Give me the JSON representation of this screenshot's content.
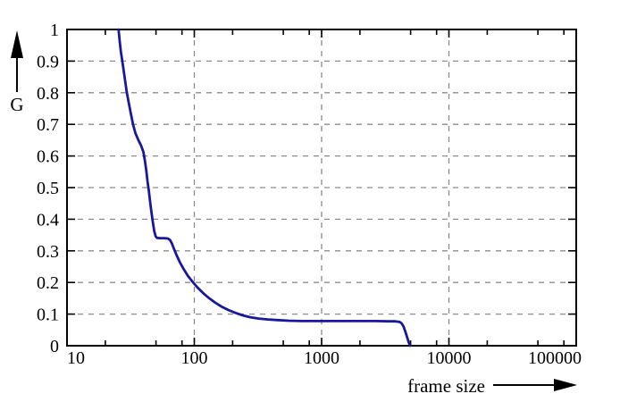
{
  "figure": {
    "background": "#ffffff",
    "axis_color": "#000000",
    "grid_color": "#8c8c8c"
  },
  "chart_data": {
    "type": "line",
    "title": "",
    "xlabel": "frame size",
    "ylabel": "G",
    "x_scale": "log",
    "x_range": [
      10,
      100000
    ],
    "y_range": [
      0,
      1
    ],
    "x_tick_values": [
      10,
      100,
      1000,
      10000,
      100000
    ],
    "x_tick_labels": [
      "10",
      "100",
      "1000",
      "10000",
      "100000"
    ],
    "x_minor_tick_multipliers": [
      2,
      5,
      8
    ],
    "y_tick_values": [
      1,
      0.9,
      0.8,
      0.7,
      0.6,
      0.5,
      0.4,
      0.3,
      0.2,
      0.1,
      0
    ],
    "y_tick_labels": [
      "1",
      "0.9",
      "0.8",
      "0.7",
      "0.6",
      "0.5",
      "0.4",
      "0.3",
      "0.2",
      "0.1",
      "0"
    ],
    "grid": {
      "style": "dashed",
      "color": "#8c8c8c",
      "x_values": [
        100,
        1000,
        10000
      ],
      "y_values": [
        0.1,
        0.2,
        0.3,
        0.4,
        0.5,
        0.6,
        0.7,
        0.8,
        0.9
      ]
    },
    "legend": "none",
    "series": [
      {
        "color": "#18189c",
        "points": [
          [
            25.4,
            1.0
          ],
          [
            25.9,
            0.965
          ],
          [
            26.5,
            0.93
          ],
          [
            27.2,
            0.9
          ],
          [
            28.2,
            0.855
          ],
          [
            29.4,
            0.805
          ],
          [
            30.5,
            0.77
          ],
          [
            31.7,
            0.735
          ],
          [
            33,
            0.7
          ],
          [
            34.4,
            0.673
          ],
          [
            36.2,
            0.652
          ],
          [
            38.2,
            0.633
          ],
          [
            39.8,
            0.613
          ],
          [
            40.9,
            0.585
          ],
          [
            41.9,
            0.555
          ],
          [
            42.9,
            0.52
          ],
          [
            43.9,
            0.49
          ],
          [
            44.9,
            0.458
          ],
          [
            46,
            0.425
          ],
          [
            47.2,
            0.392
          ],
          [
            48.5,
            0.362
          ],
          [
            49.7,
            0.346
          ],
          [
            51,
            0.341
          ],
          [
            54,
            0.34
          ],
          [
            58,
            0.34
          ],
          [
            62,
            0.339
          ],
          [
            64.5,
            0.334
          ],
          [
            66.5,
            0.324
          ],
          [
            69,
            0.308
          ],
          [
            72.5,
            0.287
          ],
          [
            77,
            0.264
          ],
          [
            82.5,
            0.242
          ],
          [
            89,
            0.221
          ],
          [
            97,
            0.202
          ],
          [
            106,
            0.184
          ],
          [
            117,
            0.167
          ],
          [
            130,
            0.151
          ],
          [
            145,
            0.137
          ],
          [
            163,
            0.124
          ],
          [
            185,
            0.113
          ],
          [
            210,
            0.104
          ],
          [
            240,
            0.096
          ],
          [
            275,
            0.09
          ],
          [
            320,
            0.086
          ],
          [
            380,
            0.083
          ],
          [
            450,
            0.081
          ],
          [
            550,
            0.079
          ],
          [
            700,
            0.078
          ],
          [
            900,
            0.078
          ],
          [
            1200,
            0.078
          ],
          [
            1600,
            0.078
          ],
          [
            2100,
            0.078
          ],
          [
            2700,
            0.078
          ],
          [
            3300,
            0.077
          ],
          [
            3800,
            0.077
          ],
          [
            4100,
            0.075
          ],
          [
            4250,
            0.071
          ],
          [
            4400,
            0.061
          ],
          [
            4550,
            0.044
          ],
          [
            4700,
            0.026
          ],
          [
            4850,
            0.009
          ],
          [
            4960,
            0.0
          ]
        ]
      }
    ]
  }
}
